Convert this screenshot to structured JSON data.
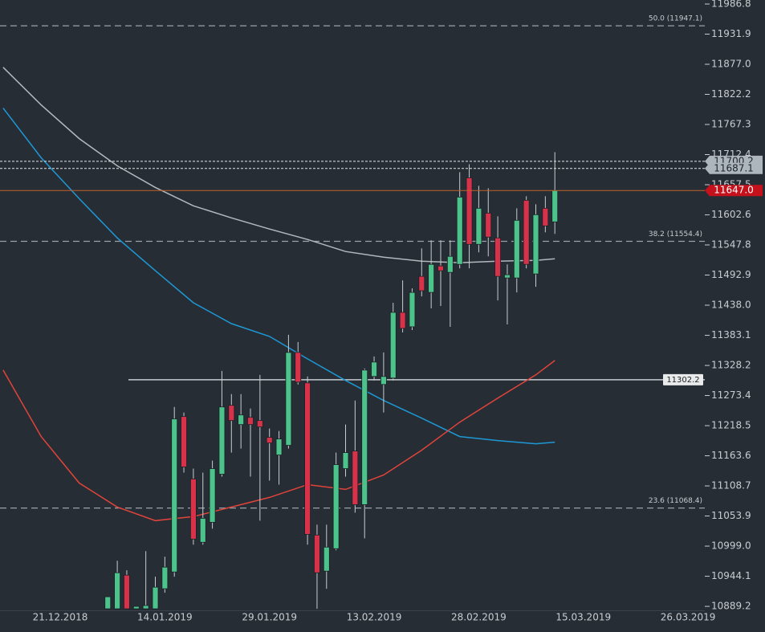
{
  "chart_data": {
    "type": "candlestick",
    "categories": [
      null,
      null,
      null,
      null,
      null,
      null,
      "21.12.2018",
      null,
      null,
      null,
      null,
      null,
      null,
      null,
      null,
      null,
      null,
      "14.01.2019",
      null,
      null,
      null,
      null,
      null,
      null,
      null,
      null,
      null,
      null,
      "29.01.2019",
      null,
      null,
      null,
      null,
      null,
      null,
      null,
      null,
      null,
      null,
      "13.02.2019",
      null,
      null,
      null,
      null,
      null,
      null,
      null,
      null,
      null,
      null,
      "28.02.2019",
      null,
      null,
      null,
      null,
      null,
      null,
      null,
      null,
      null,
      null,
      "15.03.2019",
      null,
      null,
      null,
      null,
      null,
      null,
      null,
      null,
      null,
      null,
      "26.03.2019"
    ],
    "open": [
      null,
      null,
      null,
      null,
      null,
      null,
      null,
      null,
      null,
      null,
      null,
      10884.8,
      10884.8,
      10946.1,
      10884.8,
      10884.8,
      10884.8,
      10921.3,
      10951.9,
      11235.1,
      11121.3,
      11006.0,
      11042.4,
      11130.0,
      11255.5,
      11220.5,
      11233.6,
      11227.8,
      11197.2,
      11165.0,
      11182.6,
      11351.9,
      11296.4,
      11019.1,
      10953.4,
      10994.3,
      11140.2,
      11172.3,
      11074.6,
      11308.1,
      11293.5,
      11305.2,
      11424.9,
      11398.6,
      11490.5,
      11461.3,
      11509.5,
      11497.8,
      11512.4,
      11670.1,
      11548.9,
      11605.8,
      11560.6,
      11487.6,
      11487.6,
      11629.2,
      11494.9,
      11614.6,
      11589.8,
      null,
      null,
      null,
      null,
      null,
      null,
      null,
      null,
      null,
      null,
      null,
      null,
      null,
      null
    ],
    "high": [
      null,
      null,
      null,
      null,
      null,
      null,
      null,
      null,
      null,
      null,
      null,
      10906.7,
      10972.4,
      10954.9,
      10889.2,
      10989.9,
      10943.2,
      10979.7,
      11252.6,
      11242.4,
      11140.2,
      11132.9,
      11154.8,
      11318.3,
      11276.0,
      11276.0,
      11249.7,
      11311.0,
      11213.2,
      11208.8,
      11384.0,
      11370.9,
      11308.1,
      11038.1,
      11038.1,
      11169.4,
      11220.5,
      11264.3,
      11322.7,
      11344.6,
      11351.9,
      11442.4,
      11483.2,
      11468.6,
      11541.6,
      11556.2,
      11556.2,
      11556.2,
      11680.3,
      11694.9,
      11655.5,
      11651.1,
      11600.0,
      11512.4,
      11614.6,
      11636.5,
      11621.9,
      11636.5,
      11716.8,
      null,
      null,
      null,
      null,
      null,
      null,
      null,
      null,
      null,
      null,
      null,
      null,
      null,
      null
    ],
    "low": [
      null,
      null,
      null,
      null,
      null,
      null,
      null,
      null,
      null,
      null,
      null,
      10884.8,
      10884.8,
      10884.8,
      10884.8,
      10884.8,
      10884.8,
      10914.0,
      10943.2,
      11132.9,
      11001.6,
      11001.6,
      11030.8,
      11125.6,
      11169.4,
      11176.7,
      11125.6,
      11045.4,
      11118.3,
      11111.0,
      11176.7,
      11293.5,
      11001.6,
      10884.8,
      10921.3,
      10991.4,
      11125.6,
      11060.0,
      11013.2,
      11300.8,
      11242.4,
      11300.8,
      11388.4,
      11392.7,
      11454.0,
      11432.2,
      11436.5,
      11398.6,
      11505.1,
      11505.1,
      11534.3,
      11527.0,
      11446.7,
      11403.0,
      11461.3,
      11505.1,
      11471.6,
      11570.8,
      11567.9,
      null,
      null,
      null,
      null,
      null,
      null,
      null,
      null,
      null,
      null,
      null,
      null,
      null,
      null
    ],
    "close": [
      null,
      null,
      null,
      null,
      null,
      null,
      null,
      null,
      null,
      null,
      null,
      10906.7,
      10950.5,
      10884.8,
      10889.2,
      10890.7,
      10924.2,
      10960.7,
      11230.7,
      11143.2,
      11011.8,
      11049.7,
      11140.2,
      11252.6,
      11227.8,
      11238.0,
      11220.5,
      11216.1,
      11186.9,
      11194.2,
      11351.9,
      11297.9,
      11020.5,
      10950.5,
      10997.2,
      11147.5,
      11169.4,
      11074.6,
      11319.8,
      11334.4,
      11308.1,
      11424.9,
      11395.7,
      11461.3,
      11464.3,
      11512.4,
      11500.8,
      11527.0,
      11635.0,
      11548.9,
      11614.6,
      11562.1,
      11490.5,
      11493.5,
      11592.7,
      11512.4,
      11602.9,
      11582.5,
      11647.0,
      null,
      null,
      null,
      null,
      null,
      null,
      null,
      null,
      null,
      null,
      null,
      null,
      null,
      null
    ],
    "up_color": "#4cc38a",
    "down_color": "#d8324a",
    "lines": [
      {
        "color": "#b3b8bd",
        "x": [
          0,
          4,
          8,
          12,
          16,
          20,
          24,
          28,
          32,
          36,
          40,
          44,
          48,
          52,
          56,
          58
        ],
        "values": [
          11871.5,
          11802.9,
          11741.6,
          11691.9,
          11652.6,
          11619.0,
          11597.1,
          11576.7,
          11557.7,
          11535.8,
          11525.6,
          11518.3,
          11515.4,
          11518.3,
          11519.7,
          11522.7
        ]
      },
      {
        "color": "#1e98d4",
        "x": [
          0,
          4,
          8,
          12,
          16,
          20,
          24,
          28,
          32,
          36,
          40,
          44,
          48,
          52,
          56,
          58
        ],
        "values": [
          11797.1,
          11706.6,
          11632.1,
          11560.6,
          11500.8,
          11442.4,
          11404.4,
          11381.1,
          11340.2,
          11300.8,
          11264.3,
          11232.2,
          11198.6,
          11191.3,
          11185.5,
          11188.4
        ]
      },
      {
        "color": "#e0443a",
        "x": [
          0,
          4,
          8,
          12,
          16,
          20,
          24,
          28,
          32,
          36,
          40,
          44,
          48,
          52,
          56,
          58
        ],
        "values": [
          11319.8,
          11198.6,
          11113.9,
          11070.2,
          11045.4,
          11052.7,
          11070.2,
          11087.7,
          11111.0,
          11102.3,
          11128.6,
          11173.8,
          11224.9,
          11268.7,
          11311.0,
          11337.3
        ]
      }
    ],
    "fib_levels": [
      {
        "value": 11947.1,
        "label": "50.0 (11947.1)"
      },
      {
        "value": 11554.4,
        "label": "38.2 (11554.4)"
      },
      {
        "value": 11068.4,
        "label": "23.6 (11068.4)"
      }
    ],
    "horizontal_line": {
      "value": 11302.2,
      "label": "11302.2"
    },
    "price_tags": [
      {
        "value": 11700.2,
        "label": "11700.2",
        "color": "#aeb6bd"
      },
      {
        "value": 11687.1,
        "label": "11687.1",
        "color": "#aeb6bd"
      },
      {
        "value": 11647.0,
        "label": "11647.0",
        "color": "#c4111c"
      }
    ],
    "ylim": [
      10882,
      11994.1
    ],
    "yticks": [
      11986.8,
      11931.9,
      {
        "value": 11877.0,
        "label": "11877.0"
      },
      11822.2,
      11767.3,
      11712.4,
      11657.5,
      11602.6,
      11547.8,
      11492.9,
      {
        "value": 11438.0,
        "label": "11438.0"
      },
      11383.1,
      11328.2,
      11273.4,
      11218.5,
      11163.6,
      11108.7,
      11053.9,
      {
        "value": 10999.0,
        "label": "10999.0"
      },
      10944.1,
      10889.2
    ]
  }
}
